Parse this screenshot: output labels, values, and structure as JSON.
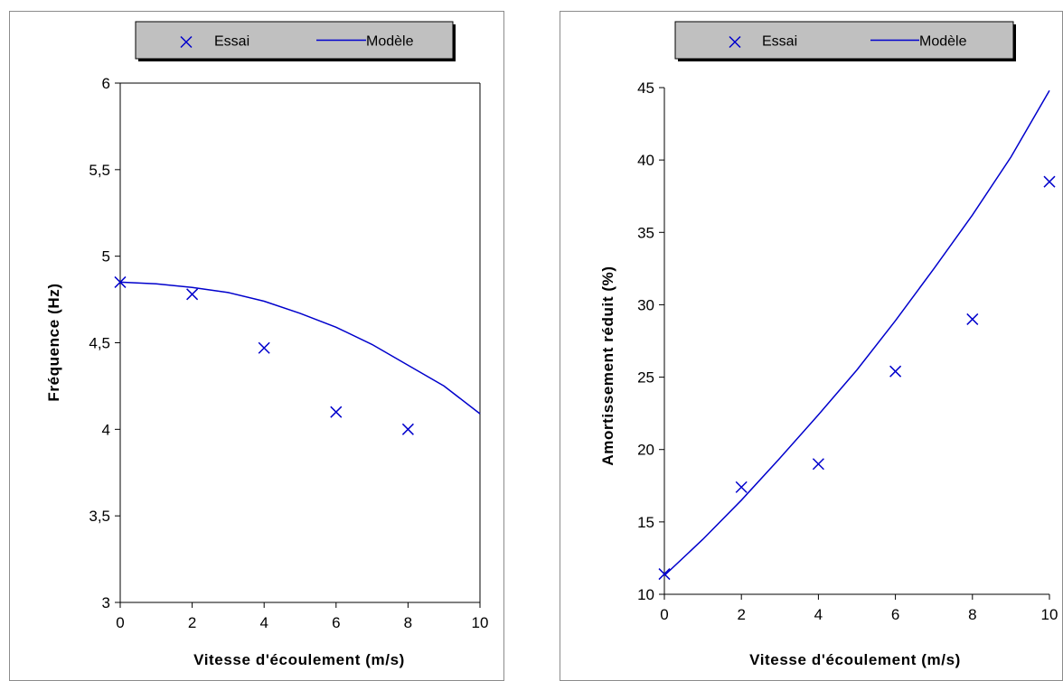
{
  "chart_data": [
    {
      "type": "line",
      "title": "",
      "xlabel": "Vitesse d'écoulement (m/s)",
      "ylabel": "Fréquence (Hz)",
      "xlim": [
        0,
        10
      ],
      "ylim": [
        3,
        6
      ],
      "x_ticks": [
        0,
        2,
        4,
        6,
        8,
        10
      ],
      "x_tick_labels": [
        "0",
        "2",
        "4",
        "6",
        "8",
        "10"
      ],
      "y_ticks": [
        3,
        3.5,
        4,
        4.5,
        5,
        5.5,
        6
      ],
      "y_tick_labels": [
        "3",
        "3,5",
        "4",
        "4,5",
        "5",
        "5,5",
        "6"
      ],
      "grid": false,
      "legend_position": "top",
      "series": [
        {
          "name": "Essai",
          "kind": "scatter",
          "marker": "x",
          "color": "#0000CC",
          "x": [
            0,
            2,
            4,
            6,
            8
          ],
          "y": [
            4.85,
            4.78,
            4.47,
            4.1,
            4.0
          ]
        },
        {
          "name": "Modèle",
          "kind": "line",
          "color": "#0000CC",
          "x": [
            0,
            1,
            2,
            3,
            4,
            5,
            6,
            7,
            8,
            9,
            10
          ],
          "y": [
            4.85,
            4.84,
            4.82,
            4.79,
            4.74,
            4.67,
            4.59,
            4.49,
            4.37,
            4.25,
            4.09
          ]
        }
      ]
    },
    {
      "type": "line",
      "title": "",
      "xlabel": "Vitesse d'écoulement (m/s)",
      "ylabel": "Amortissement réduit (%)",
      "xlim": [
        0,
        10
      ],
      "ylim": [
        10,
        45
      ],
      "x_ticks": [
        0,
        2,
        4,
        6,
        8,
        10
      ],
      "x_tick_labels": [
        "0",
        "2",
        "4",
        "6",
        "8",
        "10"
      ],
      "y_ticks": [
        10,
        15,
        20,
        25,
        30,
        35,
        40,
        45
      ],
      "y_tick_labels": [
        "10",
        "15",
        "20",
        "25",
        "30",
        "35",
        "40",
        "45"
      ],
      "grid": false,
      "legend_position": "top",
      "series": [
        {
          "name": "Essai",
          "kind": "scatter",
          "marker": "x",
          "color": "#0000CC",
          "x": [
            0,
            2,
            4,
            6,
            8,
            10
          ],
          "y": [
            11.4,
            17.4,
            19.0,
            25.4,
            29.0,
            38.5
          ]
        },
        {
          "name": "Modèle",
          "kind": "line",
          "color": "#0000CC",
          "x": [
            0,
            1,
            2,
            3,
            4,
            5,
            6,
            7,
            8,
            9,
            10
          ],
          "y": [
            11.3,
            13.8,
            16.5,
            19.4,
            22.4,
            25.5,
            28.9,
            32.5,
            36.2,
            40.2,
            44.8
          ]
        }
      ]
    }
  ]
}
